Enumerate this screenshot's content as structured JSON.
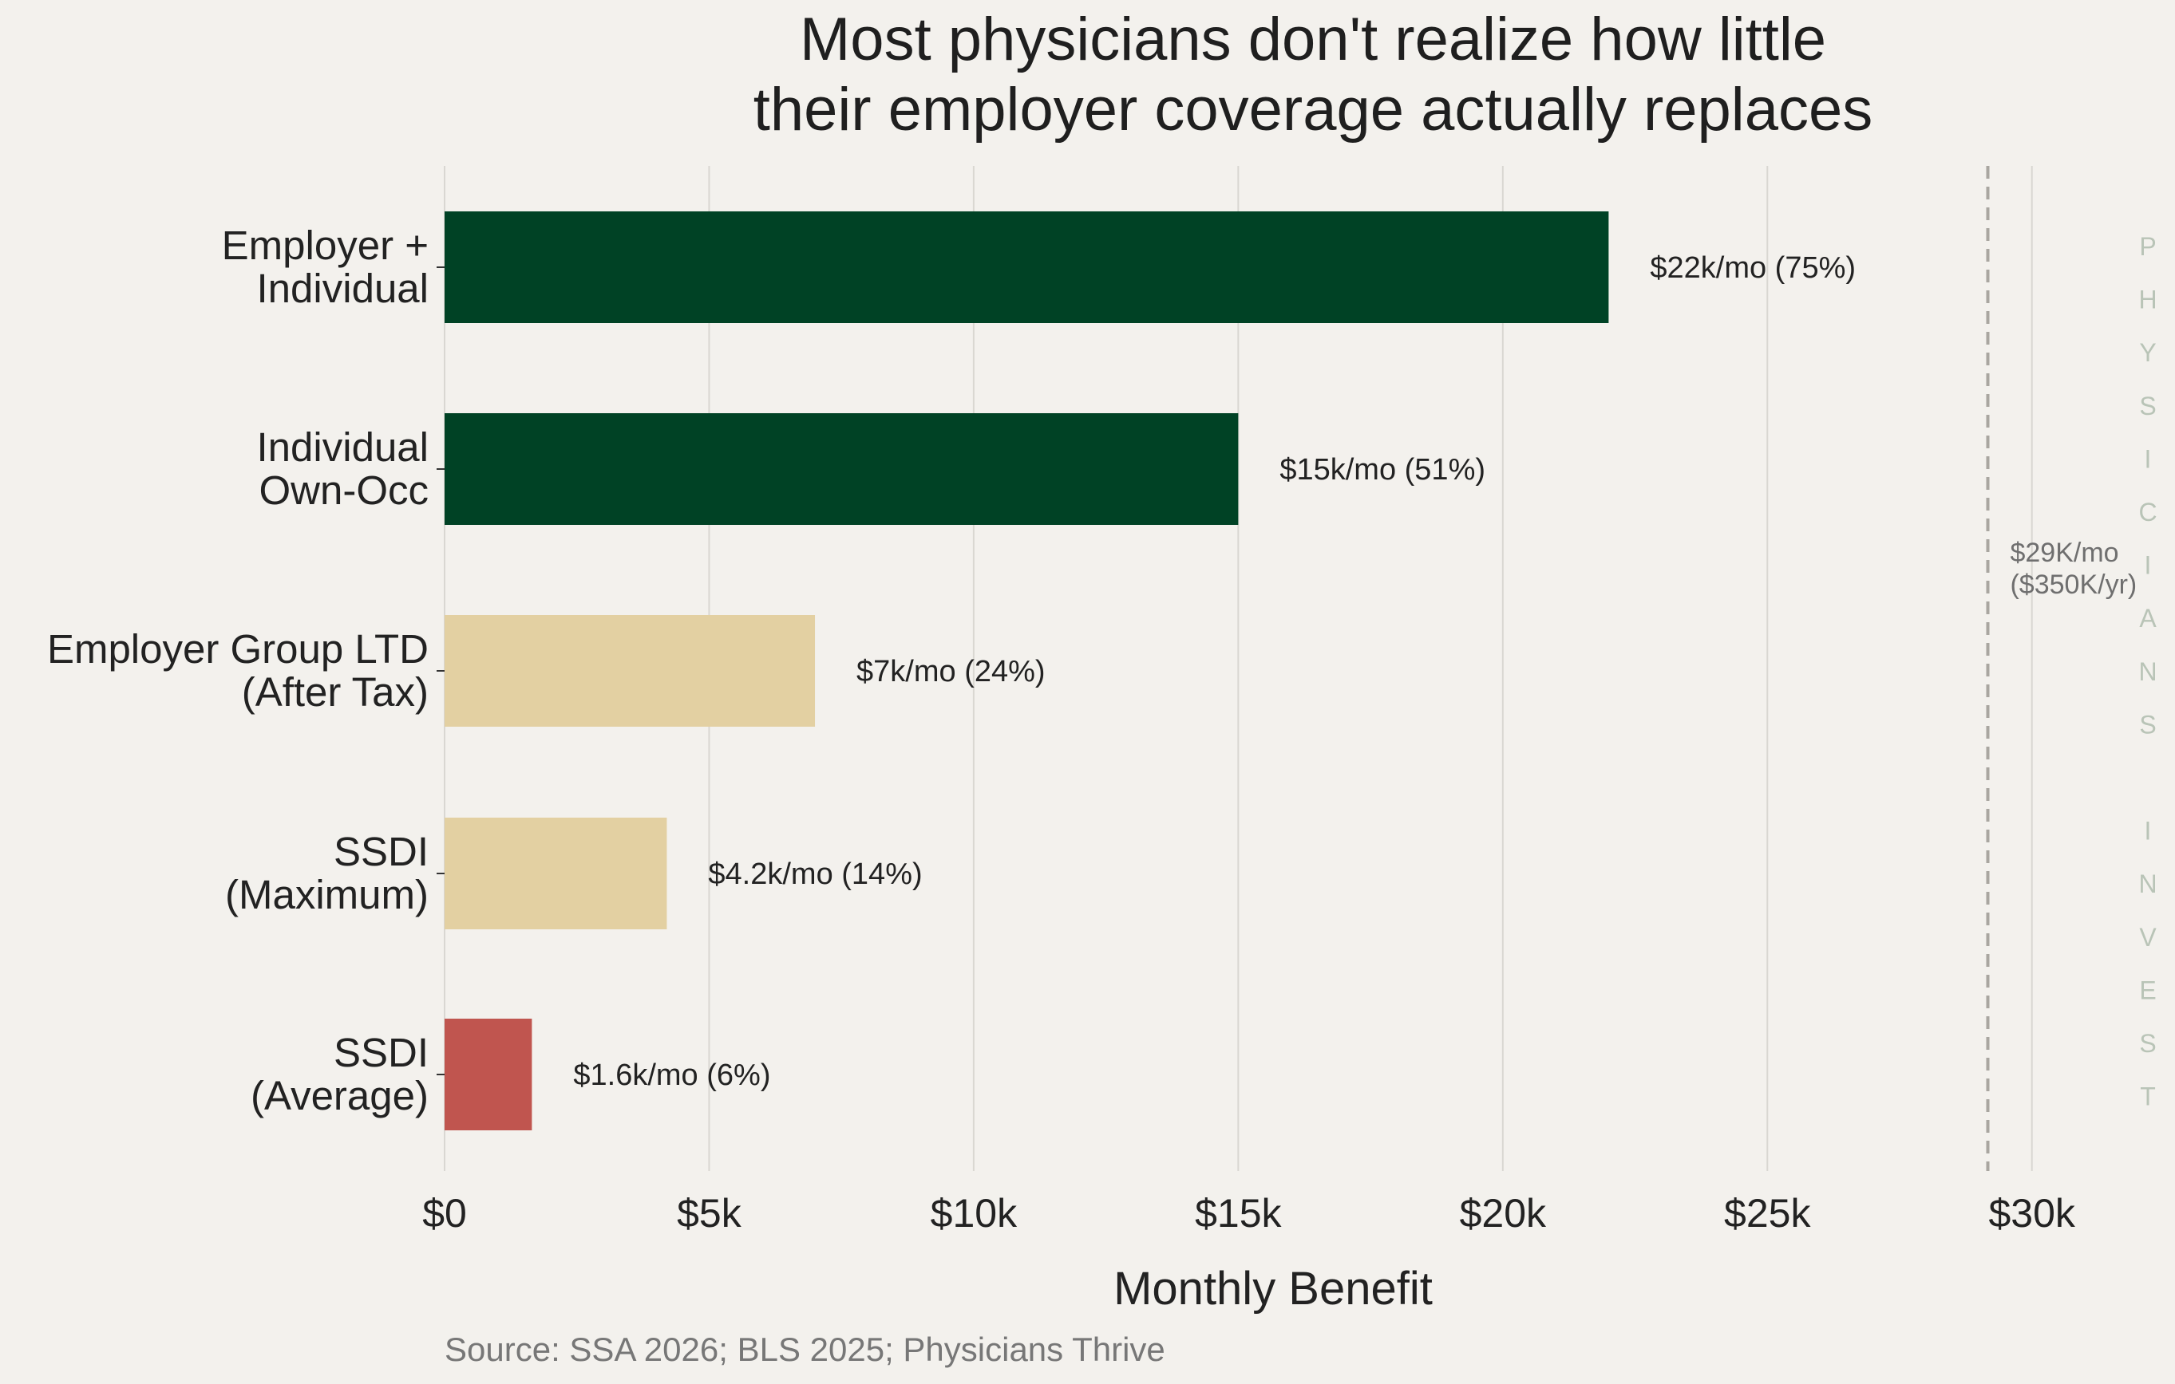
{
  "chart_data": {
    "type": "bar",
    "orientation": "horizontal",
    "title_lines": [
      "Most physicians don't realize how little",
      "their employer coverage actually replaces"
    ],
    "xlabel": "Monthly Benefit",
    "source": "Source: SSA 2026; BLS 2025; Physicians Thrive",
    "xlim": [
      0,
      31000
    ],
    "x_ticks": [
      {
        "value": 0,
        "label": "$0"
      },
      {
        "value": 5000,
        "label": "$5k"
      },
      {
        "value": 10000,
        "label": "$10k"
      },
      {
        "value": 15000,
        "label": "$15k"
      },
      {
        "value": 20000,
        "label": "$20k"
      },
      {
        "value": 25000,
        "label": "$25k"
      },
      {
        "value": 30000,
        "label": "$30k"
      }
    ],
    "grid": "vertical",
    "bars": [
      {
        "label_lines": [
          "Employer +",
          "Individual"
        ],
        "value": 22000,
        "annotation": "$22k/mo (75%)",
        "color": "#004225"
      },
      {
        "label_lines": [
          "Individual",
          "Own-Occ"
        ],
        "value": 15000,
        "annotation": "$15k/mo (51%)",
        "color": "#004225"
      },
      {
        "label_lines": [
          "Employer Group LTD",
          "(After Tax)"
        ],
        "value": 7000,
        "annotation": "$7k/mo (24%)",
        "color": "#e3d0a2"
      },
      {
        "label_lines": [
          "SSDI",
          "(Maximum)"
        ],
        "value": 4200,
        "annotation": "$4.2k/mo (14%)",
        "color": "#e3d0a2"
      },
      {
        "label_lines": [
          "SSDI",
          "(Average)"
        ],
        "value": 1650,
        "annotation": "$1.6k/mo (6%)",
        "color": "#c0554f"
      }
    ],
    "reference_line": {
      "value": 29167,
      "label_lines": [
        "$29K/mo",
        "($350K/yr)"
      ],
      "style": "dashed",
      "color": "#a9a6a0"
    },
    "watermark": "PHYSICIANS INVEST"
  }
}
